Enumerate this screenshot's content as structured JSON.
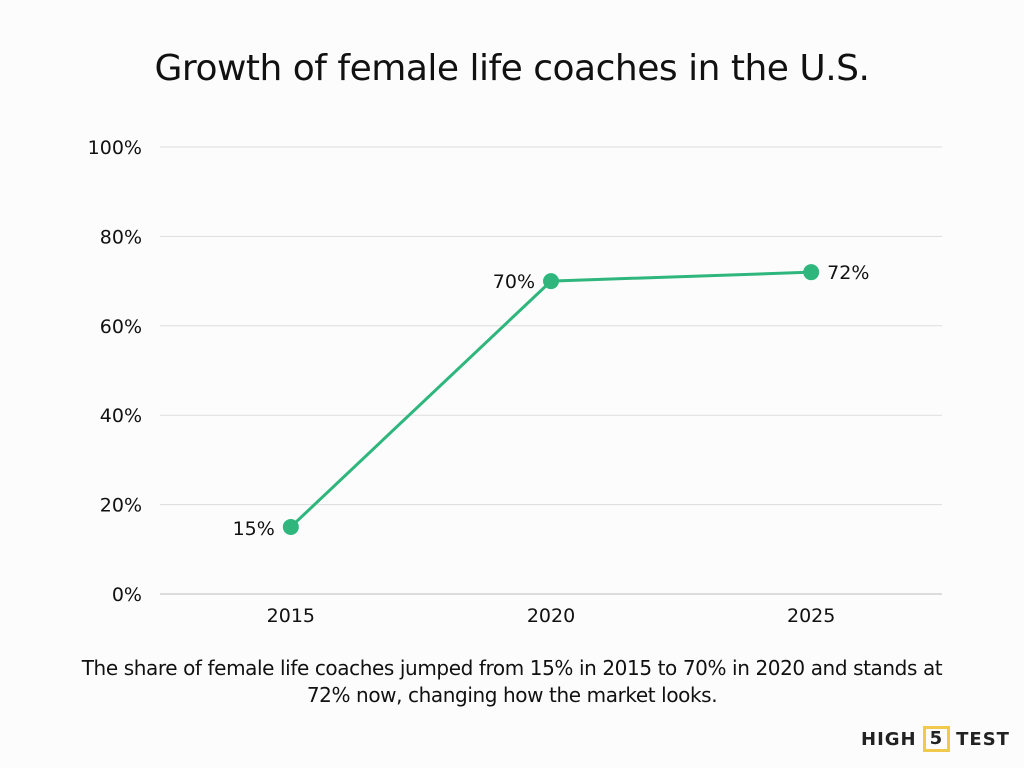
{
  "chart_data": {
    "type": "line",
    "title": "Growth of female life coaches in the U.S.",
    "categories": [
      "2015",
      "2020",
      "2025"
    ],
    "values": [
      15,
      70,
      72
    ],
    "data_labels": [
      "15%",
      "70%",
      "72%"
    ],
    "ylim": [
      0,
      100
    ],
    "yticks": [
      0,
      20,
      40,
      60,
      80,
      100
    ],
    "ytick_labels": [
      "0%",
      "20%",
      "40%",
      "60%",
      "80%",
      "100%"
    ],
    "grid": "horizontal",
    "line_color": "#2eb67d",
    "caption": "The share of female life coaches jumped from 15% in 2015 to 70% in 2020 and stands at 72% now, changing how the market looks."
  },
  "logo": {
    "left": "HIGH",
    "box": "5",
    "right": "TEST"
  },
  "colors": {
    "accent": "#2eb67d",
    "logo_box": "#f2c94c"
  }
}
